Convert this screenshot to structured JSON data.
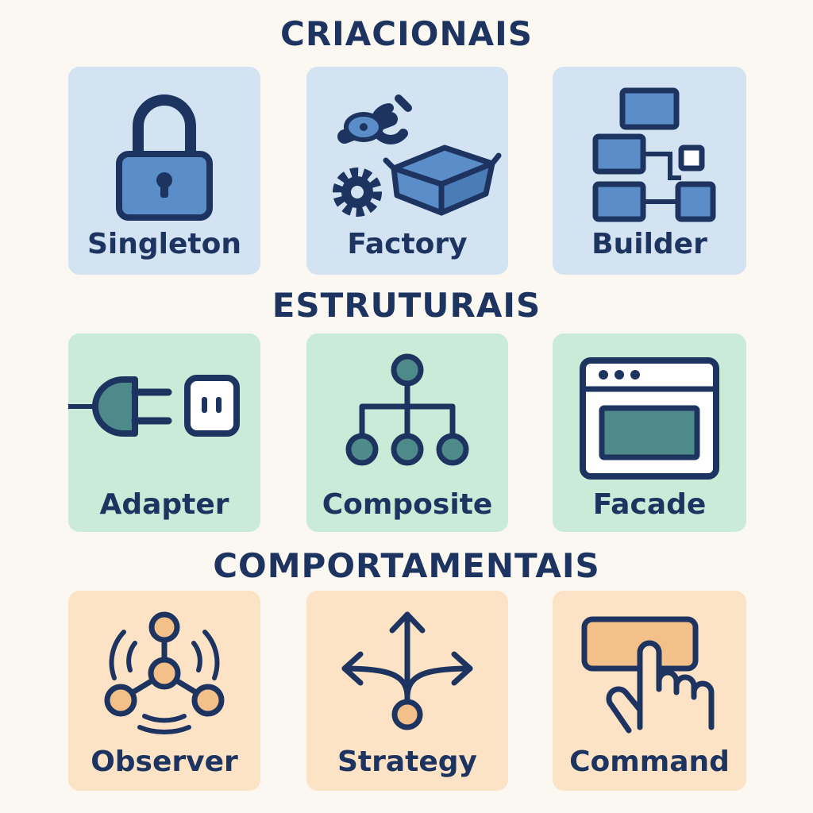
{
  "sections": [
    {
      "title": "CRIACIONAIS",
      "cards": [
        {
          "label": "Singleton",
          "icon": "padlock-icon"
        },
        {
          "label": "Factory",
          "icon": "factory-tools-box-icon"
        },
        {
          "label": "Builder",
          "icon": "builder-blocks-icon"
        }
      ]
    },
    {
      "title": "ESTRUTURAIS",
      "cards": [
        {
          "label": "Adapter",
          "icon": "plug-socket-icon"
        },
        {
          "label": "Composite",
          "icon": "tree-hierarchy-icon"
        },
        {
          "label": "Facade",
          "icon": "browser-window-icon"
        }
      ]
    },
    {
      "title": "COMPORTAMENTAIS",
      "cards": [
        {
          "label": "Observer",
          "icon": "observer-network-icon"
        },
        {
          "label": "Strategy",
          "icon": "branching-arrows-icon"
        },
        {
          "label": "Command",
          "icon": "button-press-icon"
        }
      ]
    }
  ],
  "colors": {
    "background": "#fbf7f1",
    "text": "#1d3461",
    "creational_card": "#d3e3f2",
    "structural_card": "#c9ebd7",
    "behavioral_card": "#fde3c5",
    "blue_fill": "#5b8ec9",
    "teal_fill": "#4f8a8b",
    "orange_fill": "#f2c088"
  }
}
